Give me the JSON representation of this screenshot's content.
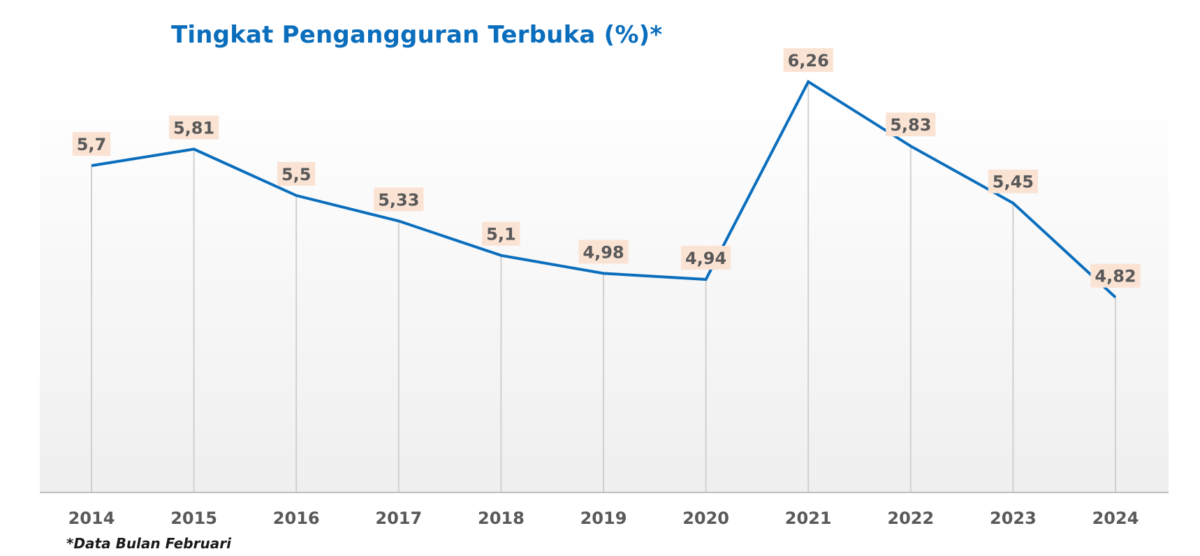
{
  "colors": {
    "line": "#0a6ebd",
    "title": "#0a6ebd",
    "label_bg": "#fbe3d4",
    "label_text": "#595959",
    "droplines": "#d0d0d0",
    "axis": "#bfbfbf",
    "plot_bg_top": "#ffffff",
    "plot_bg_bottom": "#efefef"
  },
  "footnote": "*Data Bulan Februari",
  "chart_data": {
    "type": "line",
    "title": "Tingkat Pengangguran Terbuka (%)*",
    "xlabel": "",
    "ylabel": "",
    "categories": [
      "2014",
      "2015",
      "2016",
      "2017",
      "2018",
      "2019",
      "2020",
      "2021",
      "2022",
      "2023",
      "2024"
    ],
    "series": [
      {
        "values": [
          5.7,
          5.81,
          5.5,
          5.33,
          5.1,
          4.98,
          4.94,
          6.26,
          5.83,
          5.45,
          4.82
        ]
      }
    ],
    "data_labels": [
      "5,7",
      "5,81",
      "5,5",
      "5,33",
      "5,1",
      "4,98",
      "4,94",
      "6,26",
      "5,83",
      "5,45",
      "4,82"
    ],
    "drop_lines": true,
    "grid": false,
    "legend": "none"
  }
}
